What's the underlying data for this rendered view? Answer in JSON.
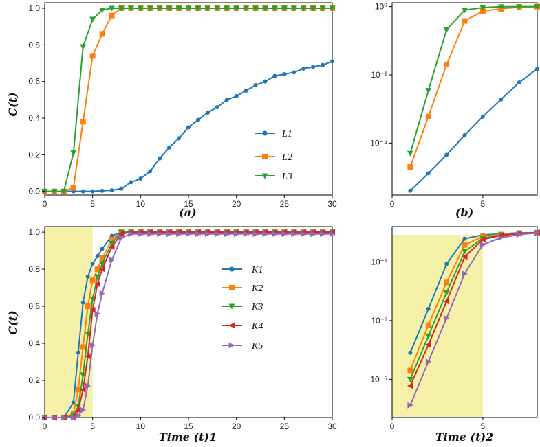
{
  "colors": {
    "L1": "#1f77b4",
    "L2": "#ff7f0e",
    "L3": "#2ca02c",
    "K1": "#1f77b4",
    "K2": "#ff7f0e",
    "K3": "#2ca02c",
    "K4": "#d62728",
    "K5": "#9467bd",
    "shade": "#f6f1a8"
  },
  "chart_data": [
    {
      "id": "a",
      "type": "line",
      "title": "",
      "caption": "(a)",
      "xlabel": "",
      "ylabel": "C(t)",
      "xlim": [
        0,
        30
      ],
      "ylim": [
        -0.02,
        1.03
      ],
      "xticks": [
        "0",
        "5",
        "10",
        "15",
        "20",
        "25",
        "30"
      ],
      "yticks": [
        "0.0",
        "0.2",
        "0.4",
        "0.6",
        "0.8",
        "1.0"
      ],
      "legend": "right",
      "series": [
        {
          "name": "L1",
          "marker": "circle",
          "x": [
            0,
            1,
            2,
            3,
            4,
            5,
            6,
            7,
            8,
            9,
            10,
            11,
            12,
            13,
            14,
            15,
            16,
            17,
            18,
            19,
            20,
            21,
            22,
            23,
            24,
            25,
            26,
            27,
            28,
            29,
            30
          ],
          "y": [
            0,
            0,
            0,
            0,
            0,
            0,
            0.003,
            0.006,
            0.015,
            0.05,
            0.07,
            0.11,
            0.18,
            0.24,
            0.29,
            0.35,
            0.39,
            0.43,
            0.46,
            0.5,
            0.52,
            0.55,
            0.58,
            0.6,
            0.63,
            0.64,
            0.65,
            0.67,
            0.68,
            0.69,
            0.71
          ]
        },
        {
          "name": "L2",
          "marker": "square",
          "x": [
            0,
            1,
            2,
            3,
            4,
            5,
            6,
            7,
            8,
            9,
            10,
            11,
            12,
            13,
            14,
            15,
            16,
            17,
            18,
            19,
            20,
            21,
            22,
            23,
            24,
            25,
            26,
            27,
            28,
            29,
            30
          ],
          "y": [
            0,
            0,
            0,
            0.02,
            0.38,
            0.74,
            0.86,
            0.96,
            1,
            1,
            1,
            1,
            1,
            1,
            1,
            1,
            1,
            1,
            1,
            1,
            1,
            1,
            1,
            1,
            1,
            1,
            1,
            1,
            1,
            1,
            1
          ]
        },
        {
          "name": "L3",
          "marker": "tri-down",
          "x": [
            0,
            1,
            2,
            3,
            4,
            5,
            6,
            7,
            8,
            9,
            10,
            11,
            12,
            13,
            14,
            15,
            16,
            17,
            18,
            19,
            20,
            21,
            22,
            23,
            24,
            25,
            26,
            27,
            28,
            29,
            30
          ],
          "y": [
            0,
            0,
            0,
            0.21,
            0.79,
            0.94,
            0.99,
            1,
            1,
            1,
            1,
            1,
            1,
            1,
            1,
            1,
            1,
            1,
            1,
            1,
            1,
            1,
            1,
            1,
            1,
            1,
            1,
            1,
            1,
            1,
            1
          ]
        }
      ]
    },
    {
      "id": "b",
      "type": "line",
      "title": "",
      "caption": "(b)",
      "xlabel": "",
      "ylabel": "",
      "yscale": "log",
      "xlim": [
        0,
        8
      ],
      "ylim": [
        3e-06,
        1.3
      ],
      "xticks": [
        "0",
        "5"
      ],
      "yticks": [
        "10⁰",
        "10⁻²",
        "10⁻⁴"
      ],
      "series": [
        {
          "name": "L1",
          "marker": "circle",
          "x": [
            1,
            2,
            3,
            4,
            5,
            6,
            7,
            8
          ],
          "y": [
            4e-06,
            1.3e-05,
            4.5e-05,
            0.00017,
            0.0006,
            0.0019,
            0.006,
            0.015
          ]
        },
        {
          "name": "L2",
          "marker": "square",
          "x": [
            1,
            2,
            3,
            4,
            5,
            6,
            7,
            8
          ],
          "y": [
            2e-05,
            0.0006,
            0.02,
            0.38,
            0.74,
            0.86,
            0.96,
            1
          ]
        },
        {
          "name": "L3",
          "marker": "tri-down",
          "x": [
            1,
            2,
            3,
            4,
            5,
            6,
            7,
            8
          ],
          "y": [
            5e-05,
            0.0035,
            0.21,
            0.79,
            0.94,
            0.99,
            1,
            1
          ]
        }
      ]
    },
    {
      "id": "c",
      "type": "line",
      "title": "",
      "xlabel": "Time (t)1",
      "ylabel": "C(t)",
      "xlim": [
        0,
        30
      ],
      "ylim": [
        0,
        1.03
      ],
      "xticks": [
        "0",
        "5",
        "10",
        "15",
        "20",
        "25",
        "30"
      ],
      "yticks": [
        "0.0",
        "0.2",
        "0.4",
        "0.6",
        "0.8",
        "1.0"
      ],
      "shaded_x": [
        0,
        5
      ],
      "legend": "center",
      "series": [
        {
          "name": "K1",
          "marker": "circle",
          "x": [
            0,
            1,
            2,
            3,
            3.5,
            4,
            4.5,
            5,
            5.5,
            6,
            7,
            8,
            9,
            10,
            11,
            12,
            13,
            14,
            15,
            16,
            17,
            18,
            19,
            20,
            21,
            22,
            23,
            24,
            25,
            26,
            27,
            28,
            29,
            30
          ],
          "y": [
            0,
            0,
            0,
            0.08,
            0.35,
            0.62,
            0.76,
            0.83,
            0.87,
            0.91,
            0.98,
            1,
            1,
            1,
            1,
            1,
            1,
            1,
            1,
            1,
            1,
            1,
            1,
            1,
            1,
            1,
            1,
            1,
            1,
            1,
            1,
            1,
            1,
            1
          ]
        },
        {
          "name": "K2",
          "marker": "square",
          "x": [
            0,
            1,
            2,
            3,
            3.5,
            4,
            4.5,
            5,
            5.5,
            6,
            7,
            8,
            9,
            10,
            11,
            12,
            13,
            14,
            15,
            16,
            17,
            18,
            19,
            20,
            21,
            22,
            23,
            24,
            25,
            26,
            27,
            28,
            29,
            30
          ],
          "y": [
            0,
            0,
            0,
            0.02,
            0.15,
            0.38,
            0.6,
            0.74,
            0.8,
            0.86,
            0.96,
            1,
            1,
            1,
            1,
            1,
            1,
            1,
            1,
            1,
            1,
            1,
            1,
            1,
            1,
            1,
            1,
            1,
            1,
            1,
            1,
            1,
            1,
            1
          ]
        },
        {
          "name": "K3",
          "marker": "tri-down",
          "x": [
            0,
            1,
            2,
            3,
            3.5,
            4,
            4.5,
            5,
            5.5,
            6,
            7,
            8,
            9,
            10,
            11,
            12,
            13,
            14,
            15,
            16,
            17,
            18,
            19,
            20,
            21,
            22,
            23,
            24,
            25,
            26,
            27,
            28,
            29,
            30
          ],
          "y": [
            0,
            0,
            0,
            0.01,
            0.06,
            0.23,
            0.45,
            0.64,
            0.76,
            0.83,
            0.94,
            1,
            1,
            1,
            1,
            1,
            1,
            1,
            1,
            1,
            1,
            1,
            1,
            1,
            1,
            1,
            1,
            1,
            1,
            1,
            1,
            1,
            1,
            1
          ]
        },
        {
          "name": "K4",
          "marker": "tri-left",
          "x": [
            0,
            1,
            2,
            3,
            3.5,
            4,
            4.5,
            5,
            5.5,
            6,
            7,
            8,
            9,
            10,
            11,
            12,
            13,
            14,
            15,
            16,
            17,
            18,
            19,
            20,
            21,
            22,
            23,
            24,
            25,
            26,
            27,
            28,
            29,
            30
          ],
          "y": [
            0,
            0,
            0,
            0,
            0.04,
            0.15,
            0.33,
            0.58,
            0.72,
            0.8,
            0.92,
            0.99,
            1,
            1,
            1,
            1,
            1,
            1,
            1,
            1,
            1,
            1,
            1,
            1,
            1,
            1,
            1,
            1,
            1,
            1,
            1,
            1,
            1,
            1
          ]
        },
        {
          "name": "K5",
          "marker": "tri-right",
          "x": [
            0,
            1,
            2,
            3,
            3.5,
            4,
            4.5,
            5,
            5.5,
            6,
            7,
            8,
            9,
            10,
            11,
            12,
            13,
            14,
            15,
            16,
            17,
            18,
            19,
            20,
            21,
            22,
            23,
            24,
            25,
            26,
            27,
            28,
            29,
            30
          ],
          "y": [
            0,
            0,
            0,
            0,
            0.01,
            0.04,
            0.17,
            0.39,
            0.56,
            0.67,
            0.85,
            0.97,
            0.99,
            0.99,
            0.99,
            0.99,
            0.99,
            0.99,
            0.99,
            0.99,
            0.99,
            0.99,
            0.99,
            0.99,
            0.99,
            0.99,
            0.99,
            0.99,
            0.99,
            0.99,
            0.99,
            0.99,
            0.99,
            0.99
          ]
        }
      ]
    },
    {
      "id": "d",
      "type": "line",
      "title": "",
      "xlabel": "Time (t)2",
      "ylabel": "",
      "yscale": "log",
      "xlim": [
        0,
        8
      ],
      "ylim": [
        5e-07,
        1.6
      ],
      "xticks": [
        "0",
        "5"
      ],
      "yticks": [
        "10⁻¹",
        "10⁻³",
        "10⁻⁵"
      ],
      "shaded_x": [
        0,
        5
      ],
      "series": [
        {
          "name": "K1",
          "marker": "circle",
          "x": [
            1,
            2,
            3,
            4,
            5,
            6,
            7,
            8
          ],
          "y": [
            8e-05,
            0.0025,
            0.085,
            0.62,
            0.83,
            0.91,
            0.98,
            1
          ]
        },
        {
          "name": "K2",
          "marker": "square",
          "x": [
            1,
            2,
            3,
            4,
            5,
            6,
            7,
            8
          ],
          "y": [
            2e-05,
            0.0007,
            0.02,
            0.38,
            0.74,
            0.86,
            0.96,
            1
          ]
        },
        {
          "name": "K3",
          "marker": "tri-down",
          "x": [
            1,
            2,
            3,
            4,
            5,
            6,
            7,
            8
          ],
          "y": [
            1e-05,
            0.0003,
            0.009,
            0.23,
            0.64,
            0.83,
            0.94,
            1
          ]
        },
        {
          "name": "K4",
          "marker": "tri-left",
          "x": [
            1,
            2,
            3,
            4,
            5,
            6,
            7,
            8
          ],
          "y": [
            6e-06,
            0.00015,
            0.0045,
            0.15,
            0.58,
            0.8,
            0.92,
            0.99
          ]
        },
        {
          "name": "K5",
          "marker": "tri-right",
          "x": [
            1,
            2,
            3,
            4,
            5,
            6,
            7,
            8
          ],
          "y": [
            1.3e-06,
            4e-05,
            0.0012,
            0.04,
            0.39,
            0.67,
            0.85,
            0.97
          ]
        }
      ]
    }
  ]
}
